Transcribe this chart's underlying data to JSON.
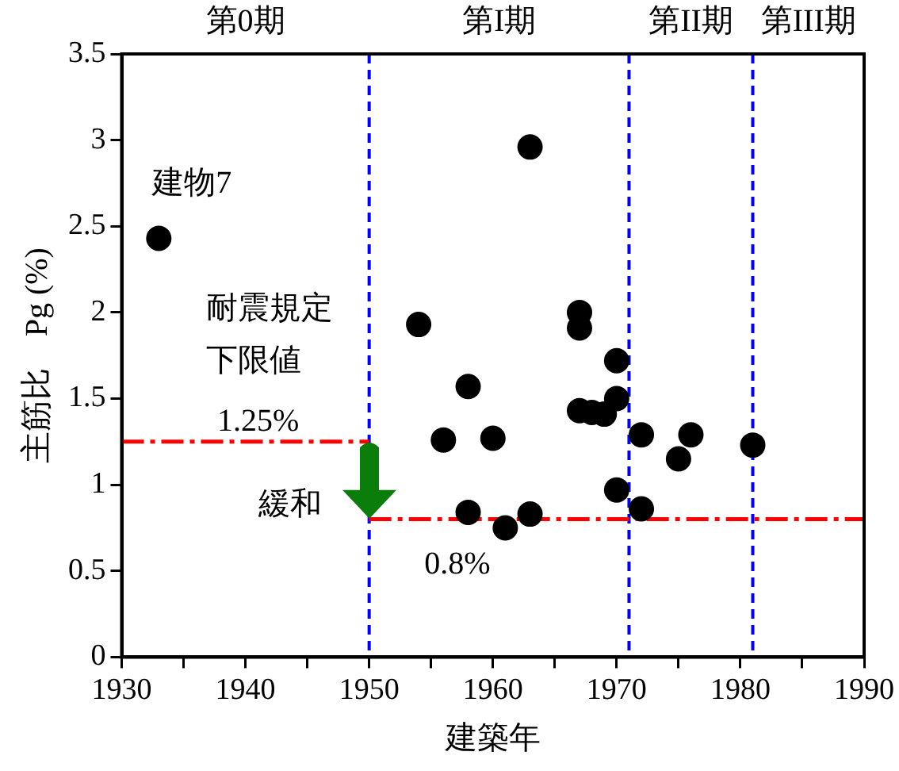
{
  "chart_data": {
    "type": "scatter",
    "xlabel": "建築年",
    "ylabel": "主筋比　Pg (%)",
    "x": [
      1933,
      1954,
      1956,
      1958,
      1958,
      1960,
      1961,
      1963,
      1963,
      1967,
      1967,
      1967,
      1968,
      1969,
      1970,
      1970,
      1970,
      1972,
      1972,
      1975,
      1976,
      1981
    ],
    "series": [
      {
        "color": "#000000",
        "values": [
          2.43,
          1.93,
          1.26,
          1.57,
          0.84,
          1.27,
          0.75,
          2.96,
          0.83,
          2.0,
          1.91,
          1.43,
          1.42,
          1.41,
          1.72,
          1.5,
          0.97,
          1.29,
          0.86,
          1.15,
          1.29,
          1.23
        ]
      },
      {
        "type": "line",
        "color": "#ff0000",
        "line_style": "dashed",
        "marker": "none",
        "x": [
          1930,
          1950
        ],
        "values": [
          1.25,
          1.25
        ]
      },
      {
        "type": "line",
        "color": "#ff0000",
        "line_style": "dashed",
        "marker": "none",
        "x": [
          1950,
          1990
        ],
        "values": [
          0.8,
          0.8
        ]
      }
    ],
    "xlim": [
      1930,
      1990
    ],
    "xticks": [
      1930,
      {
        "value": 1935,
        "label": null
      },
      1940,
      {
        "value": 1945,
        "label": null
      },
      1950,
      {
        "value": 1955,
        "label": null
      },
      1960,
      {
        "value": 1965,
        "label": null
      },
      1970,
      {
        "value": 1975,
        "label": null
      },
      1980,
      {
        "value": 1985,
        "label": null
      },
      1990
    ],
    "ylim": [
      0,
      3.5
    ],
    "yticks": [
      0,
      0.5,
      1,
      1.5,
      2,
      2.5,
      3,
      3.5
    ],
    "ref_lines": [
      {
        "axis": "x",
        "value": 1950,
        "color": "#0000ff",
        "line_style": "dashed"
      },
      {
        "axis": "x",
        "value": 1971,
        "color": "#0000ff",
        "line_style": "dashed"
      },
      {
        "axis": "x",
        "value": 1981,
        "color": "#0000ff",
        "line_style": "dashed"
      }
    ],
    "annotations": [
      {
        "text": "建物7",
        "x": 1933,
        "y": 2.43
      },
      "耐震規定",
      "下限値",
      {
        "text": "1.25%",
        "x": 1940,
        "y": 1.25
      },
      {
        "text": "緩和",
        "x": 1950,
        "y": 1.0
      },
      {
        "text": "0.8%",
        "x": 1957,
        "y": 0.8
      },
      "第0期",
      "第I期",
      "第II期",
      "第III期"
    ],
    "grid": false,
    "legend": false,
    "marker": "circle"
  }
}
